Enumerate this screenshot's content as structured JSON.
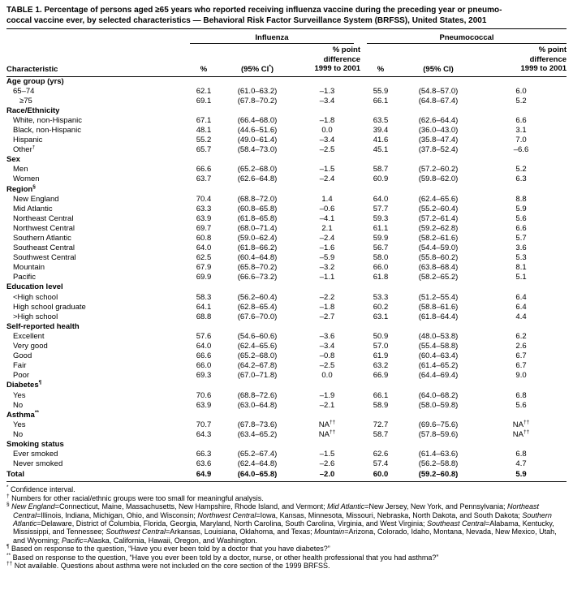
{
  "title": {
    "line1": "TABLE 1. Percentage of persons aged ≥65 years who reported receiving influenza vaccine during the preceding year or pneumo-",
    "line2": "coccal vaccine ever, by selected characteristics — Behavioral Risk Factor Surveillance System (BRFSS), United States, 2001"
  },
  "header": {
    "influenza": "Influenza",
    "pneumococcal": "Pneumococcal",
    "characteristic": "Characteristic",
    "pct": "%",
    "ci_flu": "(95% CI^*^)",
    "ci_pneu": "(95% CI)",
    "diff_line1": "% point",
    "diff_line2": "difference",
    "diff_line3": "1999 to 2001"
  },
  "sections": [
    {
      "label": "Age group (yrs)",
      "rows": [
        {
          "label": "65–74",
          "indent": 1,
          "cells": [
            "62.1",
            "(61.0–63.2)",
            "–1.3",
            "55.9",
            "(54.8–57.0)",
            "6.0"
          ]
        },
        {
          "label": "≥75",
          "indent": 2,
          "cells": [
            "69.1",
            "(67.8–70.2)",
            "–3.4",
            "66.1",
            "(64.8–67.4)",
            "5.2"
          ]
        }
      ]
    },
    {
      "label": "Race/Ethnicity",
      "rows": [
        {
          "label": "White, non-Hispanic",
          "indent": 1,
          "cells": [
            "67.1",
            "(66.4–68.0)",
            "–1.8",
            "63.5",
            "(62.6–64.4)",
            "6.6"
          ]
        },
        {
          "label": "Black, non-Hispanic",
          "indent": 1,
          "cells": [
            "48.1",
            "(44.6–51.6)",
            "0.0",
            "39.4",
            "(36.0–43.0)",
            "3.1"
          ]
        },
        {
          "label": "Hispanic",
          "indent": 1,
          "cells": [
            "55.2",
            "(49.0–61.4)",
            "–3.4",
            "41.6",
            "(35.8–47.4)",
            "7.0"
          ]
        },
        {
          "label": "Other^†",
          "indent": 1,
          "cells": [
            "65.7",
            "(58.4–73.0)",
            "–2.5",
            "45.1",
            "(37.8–52.4)",
            "–6.6"
          ]
        }
      ]
    },
    {
      "label": "Sex",
      "rows": [
        {
          "label": "Men",
          "indent": 1,
          "cells": [
            "66.6",
            "(65.2–68.0)",
            "–1.5",
            "58.7",
            "(57.2–60.2)",
            "5.2"
          ]
        },
        {
          "label": "Women",
          "indent": 1,
          "cells": [
            "63.7",
            "(62.6–64.8)",
            "–2.4",
            "60.9",
            "(59.8–62.0)",
            "6.3"
          ]
        }
      ]
    },
    {
      "label": "Region^§",
      "rows": [
        {
          "label": "New England",
          "indent": 1,
          "cells": [
            "70.4",
            "(68.8–72.0)",
            "1.4",
            "64.0",
            "(62.4–65.6)",
            "8.8"
          ]
        },
        {
          "label": "Mid Atlantic",
          "indent": 1,
          "cells": [
            "63.3",
            "(60.8–65.8)",
            "–0.6",
            "57.7",
            "(55.2–60.4)",
            "5.9"
          ]
        },
        {
          "label": "Northeast Central",
          "indent": 1,
          "cells": [
            "63.9",
            "(61.8–65.8)",
            "–4.1",
            "59.3",
            "(57.2–61.4)",
            "5.6"
          ]
        },
        {
          "label": "Northwest Central",
          "indent": 1,
          "cells": [
            "69.7",
            "(68.0–71.4)",
            "2.1",
            "61.1",
            "(59.2–62.8)",
            "6.6"
          ]
        },
        {
          "label": "Southern Atlantic",
          "indent": 1,
          "cells": [
            "60.8",
            "(59.0–62.4)",
            "–2.4",
            "59.9",
            "(58.2–61.6)",
            "5.7"
          ]
        },
        {
          "label": "Southeast Central",
          "indent": 1,
          "cells": [
            "64.0",
            "(61.8–66.2)",
            "–1.6",
            "56.7",
            "(54.4–59.0)",
            "3.6"
          ]
        },
        {
          "label": "Southwest Central",
          "indent": 1,
          "cells": [
            "62.5",
            "(60.4–64.8)",
            "–5.9",
            "58.0",
            "(55.8–60.2)",
            "5.3"
          ]
        },
        {
          "label": "Mountain",
          "indent": 1,
          "cells": [
            "67.9",
            "(65.8–70.2)",
            "–3.2",
            "66.0",
            "(63.8–68.4)",
            "8.1"
          ]
        },
        {
          "label": "Pacific",
          "indent": 1,
          "cells": [
            "69.9",
            "(66.6–73.2)",
            "–1.1",
            "61.8",
            "(58.2–65.2)",
            "5.1"
          ]
        }
      ]
    },
    {
      "label": "Education level",
      "rows": [
        {
          "label": "<High school",
          "indent": 1,
          "cells": [
            "58.3",
            "(56.2–60.4)",
            "–2.2",
            "53.3",
            "(51.2–55.4)",
            "6.4"
          ]
        },
        {
          "label": "High school graduate",
          "indent": 1,
          "cells": [
            "64.1",
            "(62.8–65.4)",
            "–1.8",
            "60.2",
            "(58.8–61.6)",
            "6.4"
          ]
        },
        {
          "label": ">High school",
          "indent": 1,
          "cells": [
            "68.8",
            "(67.6–70.0)",
            "–2.7",
            "63.1",
            "(61.8–64.4)",
            "4.4"
          ]
        }
      ]
    },
    {
      "label": "Self-reported health",
      "rows": [
        {
          "label": "Excellent",
          "indent": 1,
          "cells": [
            "57.6",
            "(54.6–60.6)",
            "–3.6",
            "50.9",
            "(48.0–53.8)",
            "6.2"
          ]
        },
        {
          "label": "Very good",
          "indent": 1,
          "cells": [
            "64.0",
            "(62.4–65.6)",
            "–3.4",
            "57.0",
            "(55.4–58.8)",
            "2.6"
          ]
        },
        {
          "label": "Good",
          "indent": 1,
          "cells": [
            "66.6",
            "(65.2–68.0)",
            "–0.8",
            "61.9",
            "(60.4–63.4)",
            "6.7"
          ]
        },
        {
          "label": "Fair",
          "indent": 1,
          "cells": [
            "66.0",
            "(64.2–67.8)",
            "–2.5",
            "63.2",
            "(61.4–65.2)",
            "6.7"
          ]
        },
        {
          "label": "Poor",
          "indent": 1,
          "cells": [
            "69.3",
            "(67.0–71.8)",
            "0.0",
            "66.9",
            "(64.4–69.4)",
            "9.0"
          ]
        }
      ]
    },
    {
      "label": "Diabetes^¶",
      "rows": [
        {
          "label": "Yes",
          "indent": 1,
          "cells": [
            "70.6",
            "(68.8–72.6)",
            "–1.9",
            "66.1",
            "(64.0–68.2)",
            "6.8"
          ]
        },
        {
          "label": "No",
          "indent": 1,
          "cells": [
            "63.9",
            "(63.0–64.8)",
            "–2.1",
            "58.9",
            "(58.0–59.8)",
            "5.6"
          ]
        }
      ]
    },
    {
      "label": "Asthma^**",
      "rows": [
        {
          "label": "Yes",
          "indent": 1,
          "cells": [
            "70.7",
            "(67.8–73.6)",
            "NA^††",
            "72.7",
            "(69.6–75.6)",
            "NA^††"
          ]
        },
        {
          "label": "No",
          "indent": 1,
          "cells": [
            "64.3",
            "(63.4–65.2)",
            "NA^††",
            "58.7",
            "(57.8–59.6)",
            "NA^††"
          ]
        }
      ]
    },
    {
      "label": "Smoking status",
      "rows": [
        {
          "label": "Ever smoked",
          "indent": 1,
          "cells": [
            "66.3",
            "(65.2–67.4)",
            "–1.5",
            "62.6",
            "(61.4–63.6)",
            "6.8"
          ]
        },
        {
          "label": "Never smoked",
          "indent": 1,
          "cells": [
            "63.6",
            "(62.4–64.8)",
            "–2.6",
            "57.4",
            "(56.2–58.8)",
            "4.7"
          ]
        }
      ]
    }
  ],
  "total": {
    "label": "Total",
    "cells": [
      "64.9",
      "(64.0–65.8)",
      "–2.0",
      "60.0",
      "(59.2–60.8)",
      "5.9"
    ]
  },
  "footnotes": [
    {
      "marker": "*",
      "text": "Confidence interval."
    },
    {
      "marker": "†",
      "text": "Numbers for other racial/ethnic groups were too small for meaningful analysis."
    },
    {
      "marker": "§",
      "text": "~New England~=Connecticut, Maine, Massachusetts, New Hampshire, Rhode Island, and Vermont; ~Mid Atlantic~=New Jersey, New York, and Pennsylvania; ~Northeast Central~=Illinois, Indiana, Michigan, Ohio, and Wisconsin; ~Northwest Central~=Iowa, Kansas, Minnesota, Missouri, Nebraska, North Dakota, and South Dakota; ~Southern Atlantic~=Delaware, District of Columbia, Florida, Georgia, Maryland, North Carolina, South Carolina, Virginia, and West Virginia; ~Southeast Central~=Alabama, Kentucky, Mississippi, and Tennessee; ~Southwest Central~=Arkansas, Louisiana, Oklahoma, and Texas; ~Mountain~=Arizona, Colorado, Idaho, Montana, Nevada, New Mexico, Utah, and Wyoming; ~Pacific~=Alaska, California, Hawaii, Oregon, and Washington."
    },
    {
      "marker": "¶",
      "text": "Based on response to the question, “Have you ever been told by a doctor that you have diabetes?”"
    },
    {
      "marker": "**",
      "text": "Based on response to the question, “Have you ever been told by a doctor, nurse, or other health professional that you had asthma?”"
    },
    {
      "marker": "††",
      "text": "Not available. Questions about asthma were not included on the core section of the 1999 BRFSS."
    }
  ]
}
